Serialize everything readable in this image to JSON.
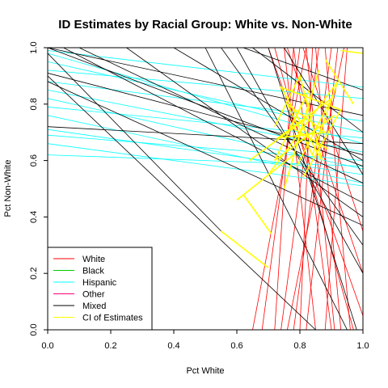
{
  "chart_data": {
    "type": "line",
    "title": "ID Estimates by Racial Group: White vs. Non-White",
    "xlabel": "Pct White",
    "ylabel": "Pct Non-White",
    "xlim": [
      0,
      1
    ],
    "ylim": [
      0,
      1
    ],
    "x_ticks": [
      "0.0",
      "0.2",
      "0.4",
      "0.6",
      "0.8",
      "1.0"
    ],
    "y_ticks": [
      "0.0",
      "0.2",
      "0.4",
      "0.6",
      "0.8",
      "1.0"
    ],
    "grid": false,
    "legend_position": "bottom-left",
    "legend": [
      {
        "label": "White",
        "color": "#ff0000"
      },
      {
        "label": "Black",
        "color": "#00cc00"
      },
      {
        "label": "Hispanic",
        "color": "#00ffff"
      },
      {
        "label": "Other",
        "color": "#ff0080"
      },
      {
        "label": "Mixed",
        "color": "#000000"
      },
      {
        "label": "CI of Estimates",
        "color": "#ffff00"
      }
    ],
    "series": [
      {
        "name": "White",
        "color": "#ff0000",
        "segments": [
          {
            "x": [
              0.65,
              0.82
            ],
            "y": [
              0.0,
              1.0
            ]
          },
          {
            "x": [
              0.68,
              0.8
            ],
            "y": [
              0.0,
              1.0
            ]
          },
          {
            "x": [
              0.72,
              0.78
            ],
            "y": [
              0.0,
              1.0
            ]
          },
          {
            "x": [
              0.74,
              0.86
            ],
            "y": [
              0.0,
              1.0
            ]
          },
          {
            "x": [
              0.78,
              0.9
            ],
            "y": [
              0.0,
              1.0
            ]
          },
          {
            "x": [
              0.8,
              0.84
            ],
            "y": [
              0.0,
              1.0
            ]
          },
          {
            "x": [
              0.82,
              0.92
            ],
            "y": [
              0.0,
              1.0
            ]
          },
          {
            "x": [
              0.85,
              0.75
            ],
            "y": [
              0.0,
              1.0
            ]
          },
          {
            "x": [
              0.88,
              0.95
            ],
            "y": [
              0.0,
              1.0
            ]
          },
          {
            "x": [
              0.9,
              0.78
            ],
            "y": [
              0.0,
              1.0
            ]
          },
          {
            "x": [
              0.93,
              0.85
            ],
            "y": [
              0.0,
              1.0
            ]
          },
          {
            "x": [
              0.96,
              0.88
            ],
            "y": [
              0.0,
              1.0
            ]
          },
          {
            "x": [
              1.0,
              0.7
            ],
            "y": [
              0.05,
              1.0
            ]
          },
          {
            "x": [
              1.0,
              0.76
            ],
            "y": [
              0.2,
              1.0
            ]
          },
          {
            "x": [
              1.0,
              0.81
            ],
            "y": [
              0.35,
              1.0
            ]
          },
          {
            "x": [
              0.97,
              0.72
            ],
            "y": [
              0.0,
              1.0
            ]
          },
          {
            "x": [
              0.91,
              0.82
            ],
            "y": [
              0.0,
              1.0
            ]
          },
          {
            "x": [
              0.76,
              0.94
            ],
            "y": [
              0.0,
              1.0
            ]
          }
        ]
      },
      {
        "name": "Hispanic",
        "color": "#00ffff",
        "segments": [
          {
            "x": [
              0.0,
              1.0
            ],
            "y": [
              0.98,
              0.66
            ]
          },
          {
            "x": [
              0.0,
              1.0
            ],
            "y": [
              0.95,
              0.7
            ]
          },
          {
            "x": [
              0.0,
              1.0
            ],
            "y": [
              0.88,
              0.74
            ]
          },
          {
            "x": [
              0.0,
              1.0
            ],
            "y": [
              0.85,
              0.63
            ]
          },
          {
            "x": [
              0.0,
              1.0
            ],
            "y": [
              0.82,
              0.57
            ]
          },
          {
            "x": [
              0.0,
              1.0
            ],
            "y": [
              0.79,
              0.68
            ]
          },
          {
            "x": [
              0.0,
              1.0
            ],
            "y": [
              0.76,
              0.52
            ]
          },
          {
            "x": [
              0.0,
              1.0
            ],
            "y": [
              0.71,
              0.55
            ]
          },
          {
            "x": [
              0.0,
              1.0
            ],
            "y": [
              0.69,
              0.6
            ]
          },
          {
            "x": [
              0.0,
              1.0
            ],
            "y": [
              0.66,
              0.51
            ]
          },
          {
            "x": [
              0.0,
              1.0
            ],
            "y": [
              0.62,
              0.58
            ]
          },
          {
            "x": [
              0.0,
              1.0
            ],
            "y": [
              0.99,
              0.86
            ]
          },
          {
            "x": [
              0.0,
              1.0
            ],
            "y": [
              0.92,
              0.82
            ]
          }
        ]
      },
      {
        "name": "Mixed",
        "color": "#000000",
        "segments": [
          {
            "x": [
              0.0,
              1.0
            ],
            "y": [
              0.88,
              0.37
            ]
          },
          {
            "x": [
              0.0,
              1.0
            ],
            "y": [
              0.91,
              0.62
            ]
          },
          {
            "x": [
              0.0,
              1.0
            ],
            "y": [
              1.0,
              0.76
            ]
          },
          {
            "x": [
              0.0,
              1.0
            ],
            "y": [
              1.0,
              0.58
            ]
          },
          {
            "x": [
              0.0,
              0.55
            ],
            "y": [
              0.98,
              0.35
            ]
          },
          {
            "x": [
              0.0,
              0.85
            ],
            "y": [
              0.9,
              0.0
            ]
          },
          {
            "x": [
              0.05,
              1.0
            ],
            "y": [
              1.0,
              0.45
            ]
          },
          {
            "x": [
              0.0,
              1.0
            ],
            "y": [
              0.72,
              0.66
            ]
          },
          {
            "x": [
              0.1,
              1.0
            ],
            "y": [
              1.0,
              0.52
            ]
          },
          {
            "x": [
              0.25,
              1.0
            ],
            "y": [
              1.0,
              0.4
            ]
          },
          {
            "x": [
              0.4,
              1.0
            ],
            "y": [
              1.0,
              0.6
            ]
          },
          {
            "x": [
              0.5,
              0.95
            ],
            "y": [
              1.0,
              0.0
            ]
          },
          {
            "x": [
              0.55,
              1.0
            ],
            "y": [
              1.0,
              0.3
            ]
          },
          {
            "x": [
              0.6,
              1.0
            ],
            "y": [
              1.0,
              0.2
            ]
          },
          {
            "x": [
              0.65,
              1.0
            ],
            "y": [
              1.0,
              0.7
            ]
          },
          {
            "x": [
              0.7,
              0.98
            ],
            "y": [
              1.0,
              0.0
            ]
          },
          {
            "x": [
              0.75,
              1.0
            ],
            "y": [
              1.0,
              0.55
            ]
          },
          {
            "x": [
              0.62,
              1.0
            ],
            "y": [
              1.0,
              0.85
            ]
          }
        ]
      },
      {
        "name": "CI of Estimates",
        "color": "#ffff00",
        "segments": [
          {
            "x": [
              0.7,
              0.92,
              0.84,
              0.76,
              0.88,
              0.73,
              0.9,
              0.79
            ],
            "y": [
              0.55,
              0.88,
              0.62,
              0.8,
              0.7,
              0.68,
              0.82,
              0.58
            ]
          },
          {
            "x": [
              0.75,
              0.86,
              0.79,
              0.91,
              0.72,
              0.83,
              0.77,
              0.89
            ],
            "y": [
              0.5,
              0.92,
              0.66,
              0.76,
              0.6,
              0.85,
              0.72,
              0.64
            ]
          },
          {
            "x": [
              0.72,
              0.8,
              0.87,
              0.74,
              0.93,
              0.81
            ],
            "y": [
              0.72,
              0.9,
              0.6,
              0.86,
              0.78,
              0.54
            ]
          },
          {
            "x": [
              0.6,
              0.78
            ],
            "y": [
              0.46,
              0.62
            ]
          },
          {
            "x": [
              0.55,
              0.7
            ],
            "y": [
              0.35,
              0.22
            ]
          },
          {
            "x": [
              0.62,
              0.71
            ],
            "y": [
              0.48,
              0.34
            ]
          },
          {
            "x": [
              0.93,
              1.0
            ],
            "y": [
              0.99,
              0.98
            ]
          },
          {
            "x": [
              0.88,
              0.97
            ],
            "y": [
              0.96,
              0.8
            ]
          },
          {
            "x": [
              0.64,
              0.82
            ],
            "y": [
              0.6,
              0.75
            ]
          }
        ]
      }
    ]
  }
}
